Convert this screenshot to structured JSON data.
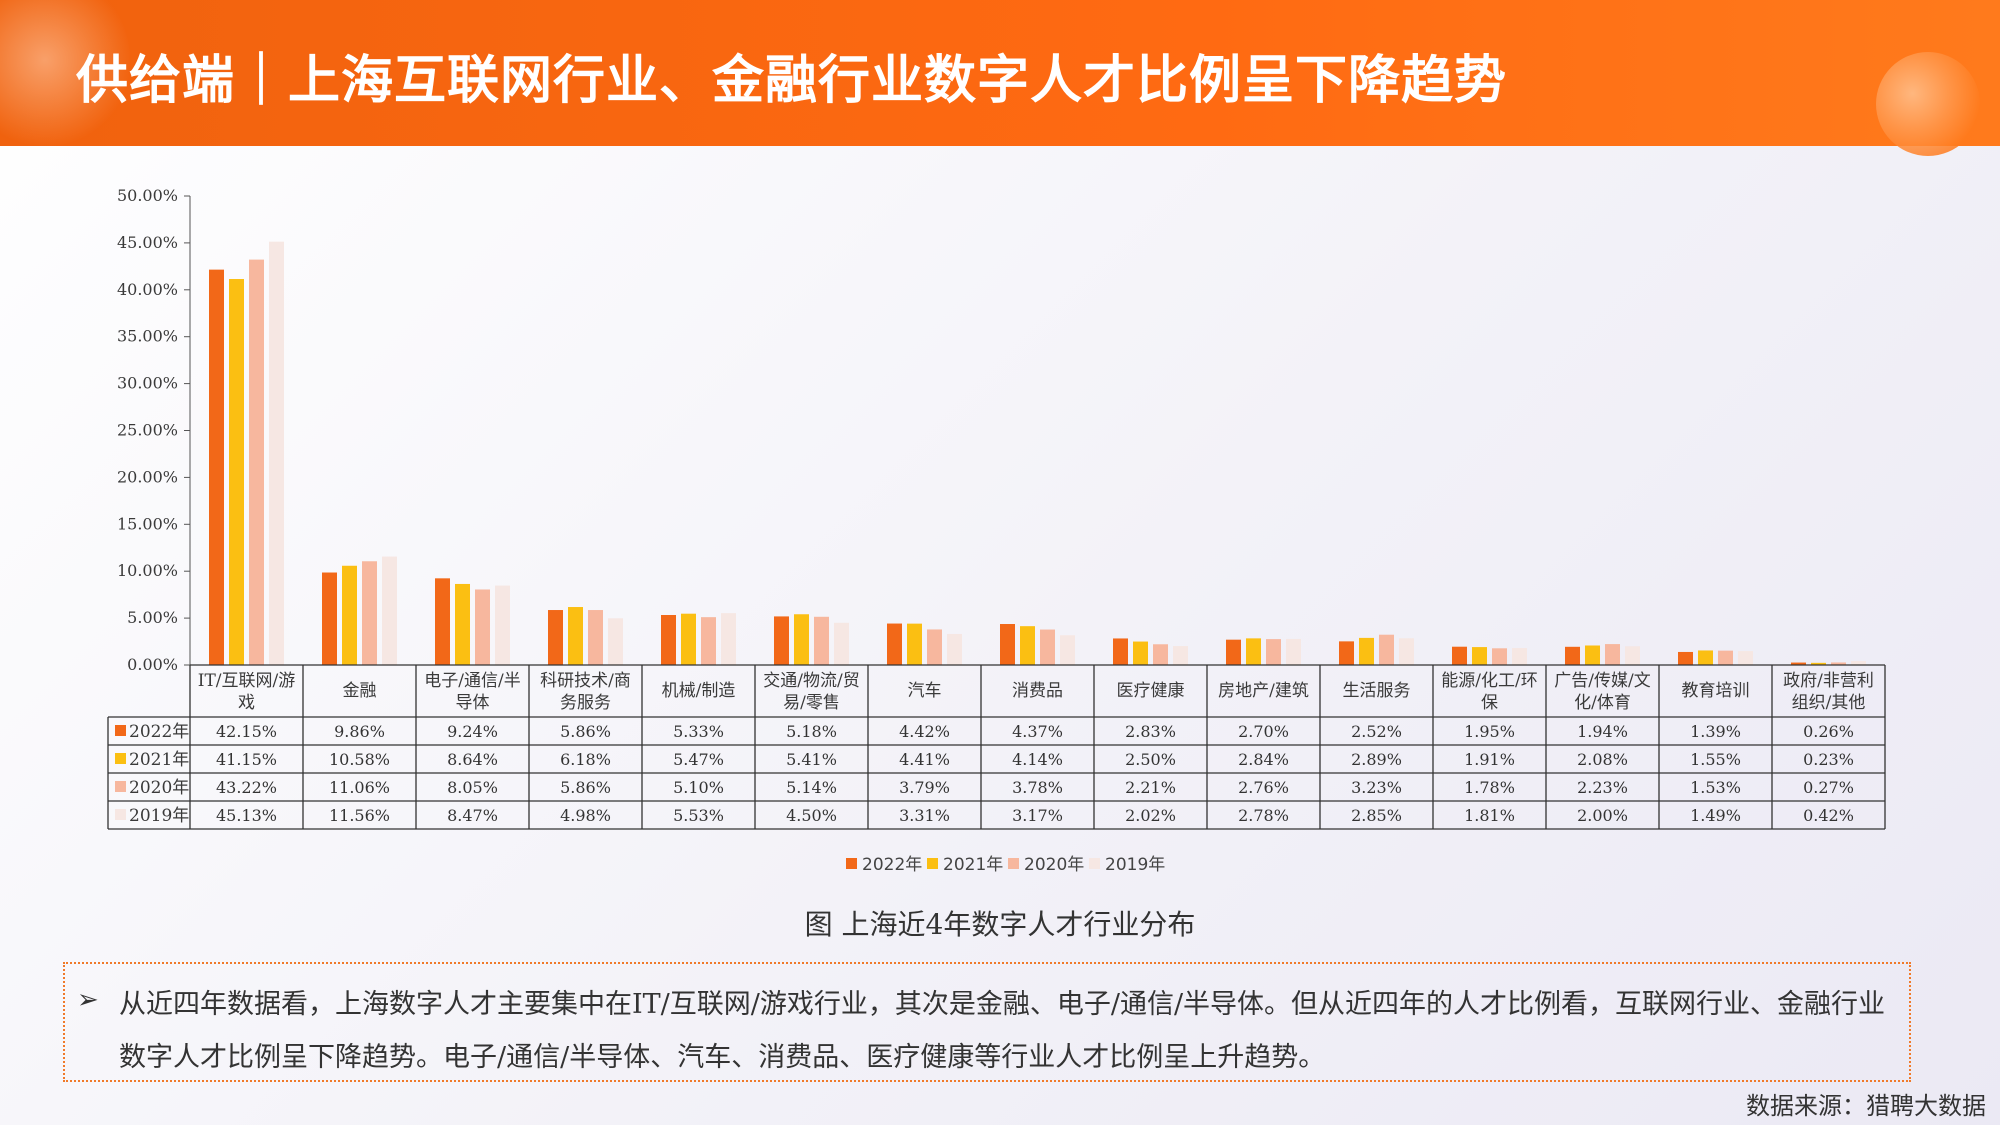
{
  "header": {
    "title": "供给端｜上海互联网行业、金融行业数字人才比例呈下降趋势"
  },
  "colors": {
    "header_bg": "#ff6a12",
    "series": [
      "#f26818",
      "#fbbf12",
      "#f7b79e",
      "#f6e7e3"
    ]
  },
  "chart_data": {
    "type": "bar",
    "categories": [
      "IT/互联网/游戏",
      "金融",
      "电子/通信/半导体",
      "科研技术/商务服务",
      "机械/制造",
      "交通/物流/贸易/零售",
      "汽车",
      "消费品",
      "医疗健康",
      "房地产/建筑",
      "生活服务",
      "能源/化工/环保",
      "广告/传媒/文化/体育",
      "教育培训",
      "政府/非营利组织/其他"
    ],
    "category_lines": [
      [
        "IT/互联网/游",
        "戏"
      ],
      [
        "金融"
      ],
      [
        "电子/通信/半",
        "导体"
      ],
      [
        "科研技术/商",
        "务服务"
      ],
      [
        "机械/制造"
      ],
      [
        "交通/物流/贸",
        "易/零售"
      ],
      [
        "汽车"
      ],
      [
        "消费品"
      ],
      [
        "医疗健康"
      ],
      [
        "房地产/建筑"
      ],
      [
        "生活服务"
      ],
      [
        "能源/化工/环",
        "保"
      ],
      [
        "广告/传媒/文",
        "化/体育"
      ],
      [
        "教育培训"
      ],
      [
        "政府/非营利",
        "组织/其他"
      ]
    ],
    "series": [
      {
        "name": "2022年",
        "values": [
          42.15,
          9.86,
          9.24,
          5.86,
          5.33,
          5.18,
          4.42,
          4.37,
          2.83,
          2.7,
          2.52,
          1.95,
          1.94,
          1.39,
          0.26
        ],
        "labels": [
          "42.15%",
          "9.86%",
          "9.24%",
          "5.86%",
          "5.33%",
          "5.18%",
          "4.42%",
          "4.37%",
          "2.83%",
          "2.70%",
          "2.52%",
          "1.95%",
          "1.94%",
          "1.39%",
          "0.26%"
        ]
      },
      {
        "name": "2021年",
        "values": [
          41.15,
          10.58,
          8.64,
          6.18,
          5.47,
          5.41,
          4.41,
          4.14,
          2.5,
          2.84,
          2.89,
          1.91,
          2.08,
          1.55,
          0.23
        ],
        "labels": [
          "41.15%",
          "10.58%",
          "8.64%",
          "6.18%",
          "5.47%",
          "5.41%",
          "4.41%",
          "4.14%",
          "2.50%",
          "2.84%",
          "2.89%",
          "1.91%",
          "2.08%",
          "1.55%",
          "0.23%"
        ]
      },
      {
        "name": "2020年",
        "values": [
          43.22,
          11.06,
          8.05,
          5.86,
          5.1,
          5.14,
          3.79,
          3.78,
          2.21,
          2.76,
          3.23,
          1.78,
          2.23,
          1.53,
          0.27
        ],
        "labels": [
          "43.22%",
          "11.06%",
          "8.05%",
          "5.86%",
          "5.10%",
          "5.14%",
          "3.79%",
          "3.78%",
          "2.21%",
          "2.76%",
          "3.23%",
          "1.78%",
          "2.23%",
          "1.53%",
          "0.27%"
        ]
      },
      {
        "name": "2019年",
        "values": [
          45.13,
          11.56,
          8.47,
          4.98,
          5.53,
          4.5,
          3.31,
          3.17,
          2.02,
          2.78,
          2.85,
          1.81,
          2.0,
          1.49,
          0.42
        ],
        "labels": [
          "45.13%",
          "11.56%",
          "8.47%",
          "4.98%",
          "5.53%",
          "4.50%",
          "3.31%",
          "3.17%",
          "2.02%",
          "2.78%",
          "2.85%",
          "1.81%",
          "2.00%",
          "1.49%",
          "0.42%"
        ]
      }
    ],
    "ylim": [
      0,
      50
    ],
    "yticks": [
      "0.00%",
      "5.00%",
      "10.00%",
      "15.00%",
      "20.00%",
      "25.00%",
      "30.00%",
      "35.00%",
      "40.00%",
      "45.00%",
      "50.00%"
    ],
    "legend_position": "bottom",
    "grid": false,
    "data_table": true
  },
  "caption": "图 上海近4年数字人才行业分布",
  "note": {
    "bullet": "➢",
    "text": "从近四年数据看，上海数字人才主要集中在IT/互联网/游戏行业，其次是金融、电子/通信/半导体。但从近四年的人才比例看，互联网行业、金融行业数字人才比例呈下降趋势。电子/通信/半导体、汽车、消费品、医疗健康等行业人才比例呈上升趋势。"
  },
  "source": "数据来源：猎聘大数据"
}
